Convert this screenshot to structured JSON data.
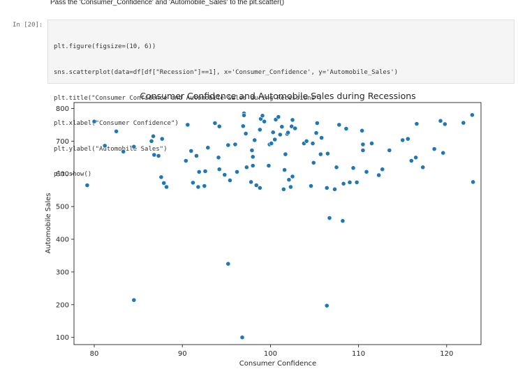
{
  "instruction": "Pass the 'Consumer_Confidence' and 'Automobile_Sales' to the plt.scatter()",
  "cell": {
    "prompt": "In [20]:",
    "code_lines": [
      "plt.figure(figsize=(10, 6))",
      "sns.scatterplot(data=df[df[\"Recession\"]==1], x='Consumer_Confidence', y='Automobile_Sales')",
      "plt.title(\"Consumer Confidence and Automobile Sales during Recessions\")",
      "plt.xlabel(\"Consumer Confidence\")",
      "plt.ylabel(\"Automobile Sales\")",
      "plt.show()"
    ]
  },
  "colors": {
    "marker": "#1f77b4"
  },
  "chart_data": {
    "type": "scatter",
    "title": "Consumer Confidence and Automobile Sales during Recessions",
    "xlabel": "Consumer Confidence",
    "ylabel": "Automobile Sales",
    "xlim": [
      77.7,
      123.9
    ],
    "ylim": [
      78,
      818
    ],
    "xticks": [
      "80",
      "90",
      "100",
      "110",
      "120"
    ],
    "yticks": [
      "100",
      "200",
      "300",
      "400",
      "500",
      "600",
      "700",
      "800"
    ],
    "grid": false,
    "points": [
      [
        79.2,
        565
      ],
      [
        80.0,
        760
      ],
      [
        81.2,
        686
      ],
      [
        82.5,
        730
      ],
      [
        83.3,
        668
      ],
      [
        84.5,
        683
      ],
      [
        84.5,
        214
      ],
      [
        86.5,
        700
      ],
      [
        86.7,
        715
      ],
      [
        86.8,
        658
      ],
      [
        87.3,
        655
      ],
      [
        87.6,
        590
      ],
      [
        87.7,
        707
      ],
      [
        87.9,
        572
      ],
      [
        88.2,
        560
      ],
      [
        90.4,
        640
      ],
      [
        90.6,
        750
      ],
      [
        91.0,
        670
      ],
      [
        91.2,
        573
      ],
      [
        91.6,
        655
      ],
      [
        91.8,
        560
      ],
      [
        91.9,
        606
      ],
      [
        92.5,
        563
      ],
      [
        92.6,
        608
      ],
      [
        92.9,
        680
      ],
      [
        93.7,
        755
      ],
      [
        94.2,
        745
      ],
      [
        94.1,
        650
      ],
      [
        94.2,
        614
      ],
      [
        94.8,
        597
      ],
      [
        95.2,
        688
      ],
      [
        95.2,
        325
      ],
      [
        95.4,
        580
      ],
      [
        96.0,
        690
      ],
      [
        96.2,
        606
      ],
      [
        96.8,
        100
      ],
      [
        96.9,
        746
      ],
      [
        97.0,
        785
      ],
      [
        97.0,
        779
      ],
      [
        97.2,
        723
      ],
      [
        97.3,
        620
      ],
      [
        97.8,
        575
      ],
      [
        97.9,
        672
      ],
      [
        98.0,
        652
      ],
      [
        98.0,
        625
      ],
      [
        98.2,
        703
      ],
      [
        98.4,
        565
      ],
      [
        98.8,
        735
      ],
      [
        98.9,
        768
      ],
      [
        98.8,
        557
      ],
      [
        99.1,
        778
      ],
      [
        99.3,
        760
      ],
      [
        99.8,
        625
      ],
      [
        99.9,
        690
      ],
      [
        100.1,
        693
      ],
      [
        100.3,
        727
      ],
      [
        100.5,
        705
      ],
      [
        100.6,
        766
      ],
      [
        100.9,
        774
      ],
      [
        101.1,
        720
      ],
      [
        101.3,
        744
      ],
      [
        101.5,
        553
      ],
      [
        101.6,
        612
      ],
      [
        101.7,
        660
      ],
      [
        101.9,
        722
      ],
      [
        102.0,
        726
      ],
      [
        102.1,
        582
      ],
      [
        102.3,
        560
      ],
      [
        102.4,
        745
      ],
      [
        102.5,
        765
      ],
      [
        102.5,
        592
      ],
      [
        102.8,
        739
      ],
      [
        103.8,
        693
      ],
      [
        104.1,
        700
      ],
      [
        104.6,
        563
      ],
      [
        104.9,
        634
      ],
      [
        104.8,
        693
      ],
      [
        105.2,
        725
      ],
      [
        105.3,
        755
      ],
      [
        105.8,
        710
      ],
      [
        105.7,
        660
      ],
      [
        106.5,
        662
      ],
      [
        106.4,
        557
      ],
      [
        106.7,
        465
      ],
      [
        106.4,
        197
      ],
      [
        107.3,
        553
      ],
      [
        107.5,
        620
      ],
      [
        107.8,
        750
      ],
      [
        108.3,
        570
      ],
      [
        108.2,
        456
      ],
      [
        108.6,
        738
      ],
      [
        109.0,
        574
      ],
      [
        109.4,
        618
      ],
      [
        109.8,
        574
      ],
      [
        110.4,
        732
      ],
      [
        110.5,
        690
      ],
      [
        110.5,
        672
      ],
      [
        110.9,
        606
      ],
      [
        111.5,
        693
      ],
      [
        112.3,
        596
      ],
      [
        112.7,
        614
      ],
      [
        113.5,
        672
      ],
      [
        115.0,
        703
      ],
      [
        115.6,
        707
      ],
      [
        116.0,
        640
      ],
      [
        116.5,
        650
      ],
      [
        116.6,
        753
      ],
      [
        117.3,
        620
      ],
      [
        118.6,
        676
      ],
      [
        119.3,
        762
      ],
      [
        119.6,
        664
      ],
      [
        119.8,
        752
      ],
      [
        121.9,
        756
      ],
      [
        122.9,
        780
      ],
      [
        123.0,
        575
      ]
    ]
  }
}
